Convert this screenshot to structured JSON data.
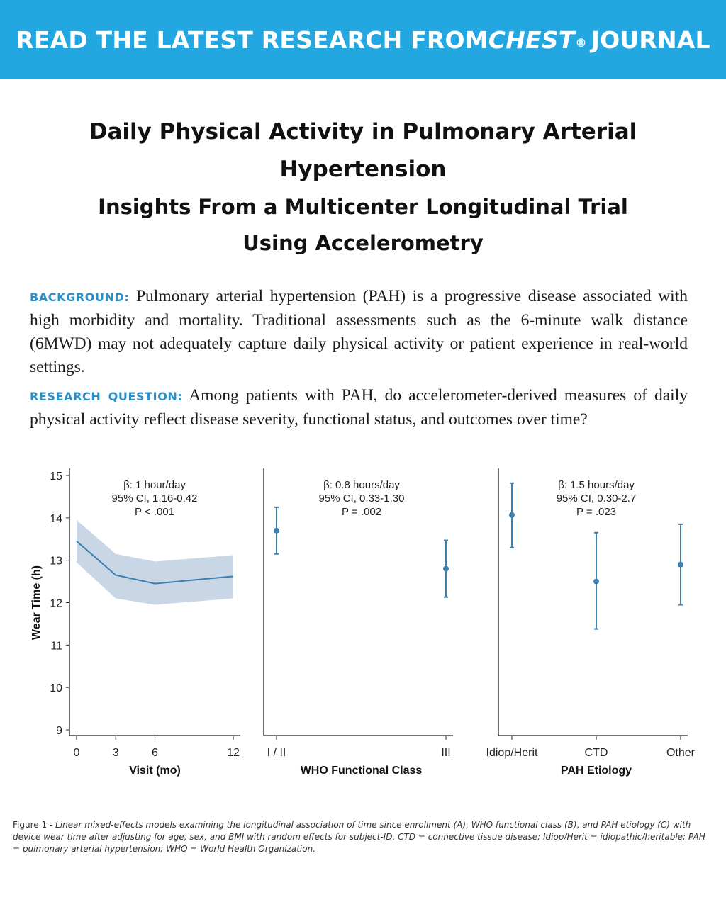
{
  "banner": {
    "prefix": "READ THE LATEST RESEARCH FROM ",
    "journal": "CHEST",
    "registered": "®",
    "suffix": " JOURNAL"
  },
  "article": {
    "title": "Daily Physical Activity in Pulmonary Arterial Hypertension",
    "subtitle": "Insights From a Multicenter Longitudinal Trial Using Accelerometry",
    "background_label": "BACKGROUND:",
    "background_text": " Pulmonary arterial hypertension (PAH) is a progressive disease associated with high morbidity and mortality. Traditional assessments such as the 6-minute walk distance (6MWD) may not adequately capture daily physical activity or patient experience in real-world settings.",
    "question_label": "RESEARCH QUESTION:",
    "question_text": " Among patients with PAH, do accelerometer-derived measures of daily physical activity reflect disease severity, functional status, and outcomes over time?"
  },
  "colors": {
    "banner": "#22a7e0",
    "label": "#2a8fc7",
    "series": "#3a7fb0",
    "band": "#c8d6e5"
  },
  "chart_data": [
    {
      "type": "line",
      "ylabel": "Wear Time (h)",
      "xlabel": "Visit (mo)",
      "ylim": [
        9,
        15
      ],
      "yticks": [
        "9",
        "10",
        "11",
        "12",
        "13",
        "14",
        "15"
      ],
      "x": [
        0,
        3,
        6,
        12
      ],
      "x_tick_labels": [
        "0",
        "3",
        "6",
        "12"
      ],
      "series": [
        {
          "values": [
            13.45,
            12.65,
            12.45,
            12.62
          ],
          "ci_lower": [
            12.95,
            12.1,
            11.95,
            12.1
          ],
          "ci_upper": [
            13.95,
            13.15,
            12.97,
            13.12
          ]
        }
      ],
      "annotation": [
        "β: 1 hour/day",
        "95% CI, 1.16-0.42",
        "P < .001"
      ]
    },
    {
      "type": "scatter",
      "xlabel": "WHO Functional Class",
      "categories": [
        "I / II",
        "III"
      ],
      "values": [
        13.7,
        12.8
      ],
      "ci_lower": [
        13.15,
        12.13
      ],
      "ci_upper": [
        14.25,
        13.47
      ],
      "annotation": [
        "β: 0.8 hours/day",
        "95% CI, 0.33-1.30",
        "P = .002"
      ]
    },
    {
      "type": "scatter",
      "xlabel": "PAH Etiology",
      "categories": [
        "Idiop/Herit",
        "CTD",
        "Other"
      ],
      "values": [
        14.07,
        12.5,
        12.9
      ],
      "ci_lower": [
        13.3,
        11.38,
        11.95
      ],
      "ci_upper": [
        14.82,
        13.65,
        13.85
      ],
      "annotation": [
        "β: 1.5 hours/day",
        "95% CI, 0.30-2.7",
        "P = .023"
      ]
    }
  ],
  "caption": {
    "label": "Figure 1 - ",
    "text": "Linear mixed-effects models examining the longitudinal association of time since enrollment (A), WHO functional class (B), and PAH etiology (C) with device wear time after adjusting for age, sex, and BMI with random effects for subject-ID. CTD = connective tissue disease; Idiop/Herit = idiopathic/heritable; PAH = pulmonary arterial hypertension; WHO = World Health Organization."
  }
}
